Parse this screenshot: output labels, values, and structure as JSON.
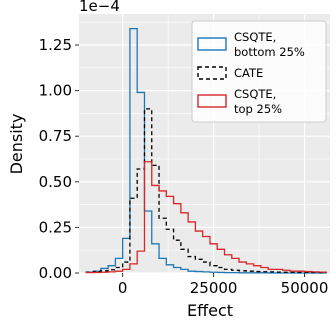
{
  "chart_data": {
    "type": "histogram",
    "title": "",
    "xlabel": "Effect",
    "ylabel": "Density",
    "scale_label": "1e−4",
    "xlim": [
      -12000,
      57000
    ],
    "ylim": [
      0,
      1.42
    ],
    "x_ticks": [
      0,
      25000,
      50000
    ],
    "x_tick_labels": [
      "0",
      "25000",
      "50000"
    ],
    "y_ticks": [
      0,
      0.25,
      0.5,
      0.75,
      1.0,
      1.25
    ],
    "y_tick_labels": [
      "0.00",
      "0.25",
      "0.50",
      "0.75",
      "1.00",
      "1.25"
    ],
    "grid": true,
    "legend_position": "top-right",
    "bin_edges": [
      -10000,
      -8000,
      -6000,
      -4000,
      -2000,
      0,
      2000,
      4000,
      6000,
      8000,
      10000,
      12000,
      14000,
      16000,
      18000,
      20000,
      22000,
      24000,
      26000,
      28000,
      30000,
      32000,
      34000,
      36000,
      38000,
      40000,
      42000,
      44000,
      46000,
      48000,
      50000,
      52000,
      54000,
      56000
    ],
    "series": [
      {
        "name": "CSQTE,\n bottom 25%",
        "color": "#1f77b4",
        "linestyle": "solid",
        "values": [
          0.005,
          0.01,
          0.025,
          0.04,
          0.08,
          0.19,
          1.34,
          0.99,
          0.34,
          0.16,
          0.08,
          0.045,
          0.03,
          0.02,
          0.01,
          0.008,
          0.006,
          0.004,
          0.003,
          0.002,
          0.002,
          0.001,
          0.001,
          0.001,
          0.001,
          0.0,
          0.0,
          0.0,
          0.0,
          0.0,
          0.0,
          0.0,
          0.0
        ]
      },
      {
        "name": "CATE",
        "color": "#000000",
        "linestyle": "dashed",
        "values": [
          0.005,
          0.008,
          0.012,
          0.018,
          0.03,
          0.06,
          0.41,
          0.57,
          0.9,
          0.59,
          0.3,
          0.24,
          0.18,
          0.13,
          0.09,
          0.075,
          0.06,
          0.04,
          0.03,
          0.02,
          0.015,
          0.012,
          0.01,
          0.008,
          0.007,
          0.006,
          0.005,
          0.004,
          0.004,
          0.003,
          0.003,
          0.002,
          0.002
        ]
      },
      {
        "name": "CSQTE,\n top 25%",
        "color": "#d62728",
        "linestyle": "solid",
        "values": [
          0.002,
          0.003,
          0.004,
          0.006,
          0.01,
          0.02,
          0.05,
          0.12,
          0.61,
          0.48,
          0.45,
          0.42,
          0.38,
          0.33,
          0.28,
          0.23,
          0.2,
          0.16,
          0.13,
          0.1,
          0.08,
          0.06,
          0.05,
          0.04,
          0.03,
          0.02,
          0.02,
          0.015,
          0.01,
          0.01,
          0.008,
          0.006,
          0.005
        ]
      }
    ]
  }
}
